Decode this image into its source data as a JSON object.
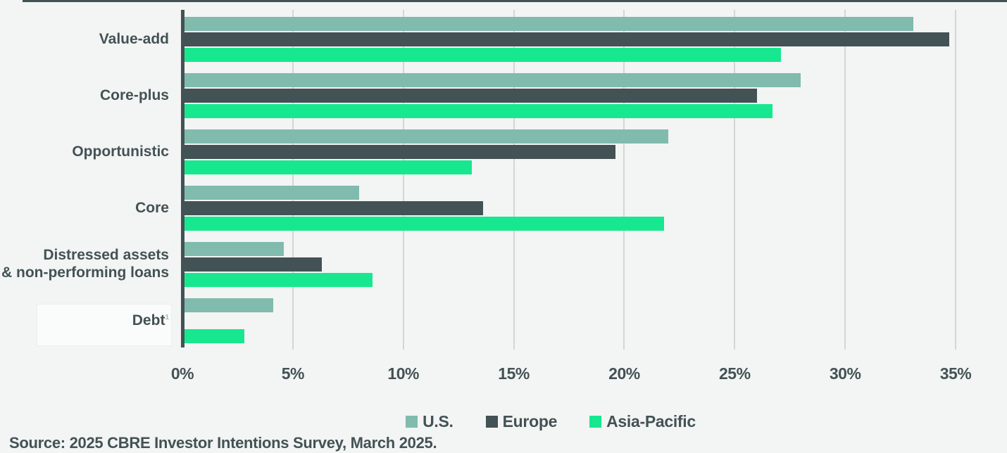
{
  "page": {
    "background": "#f3f4f4",
    "top_rule_color": "#435254",
    "gridline_color": "#d4d6d6",
    "axis_color": "#435254",
    "text_color": "#435254"
  },
  "chart_data": {
    "type": "bar",
    "orientation": "horizontal",
    "title": "",
    "xlabel": "",
    "ylabel": "",
    "xlim": [
      0,
      35
    ],
    "x_ticks": [
      "0%",
      "5%",
      "10%",
      "15%",
      "20%",
      "25%",
      "30%",
      "35%"
    ],
    "grid": "vertical",
    "legend_position": "bottom",
    "categories": [
      "Value-add",
      "Core-plus",
      "Opportunistic",
      "Core",
      "Distressed assets & non-performing loans",
      "Debt"
    ],
    "series": [
      {
        "name": "U.S.",
        "color": "#80BBAD",
        "values": [
          33.1,
          28.0,
          22.0,
          8.0,
          4.6,
          4.1
        ]
      },
      {
        "name": "Europe",
        "color": "#435254",
        "values": [
          34.7,
          26.0,
          19.6,
          13.6,
          6.3,
          0
        ]
      },
      {
        "name": "Asia-Pacific",
        "color": "#17E88F",
        "values": [
          27.1,
          26.7,
          13.1,
          21.8,
          8.6,
          2.8
        ]
      }
    ]
  },
  "category_lines": [
    [
      "Value-add"
    ],
    [
      "Core-plus"
    ],
    [
      "Opportunistic"
    ],
    [
      "Core"
    ],
    [
      "Distressed assets",
      "& non-performing loans"
    ],
    [
      "Debt"
    ]
  ],
  "footnote": {
    "marker": "1",
    "category_index": 5
  },
  "source": {
    "text": "Source: 2025 CBRE Investor Intentions Survey, March 2025."
  }
}
